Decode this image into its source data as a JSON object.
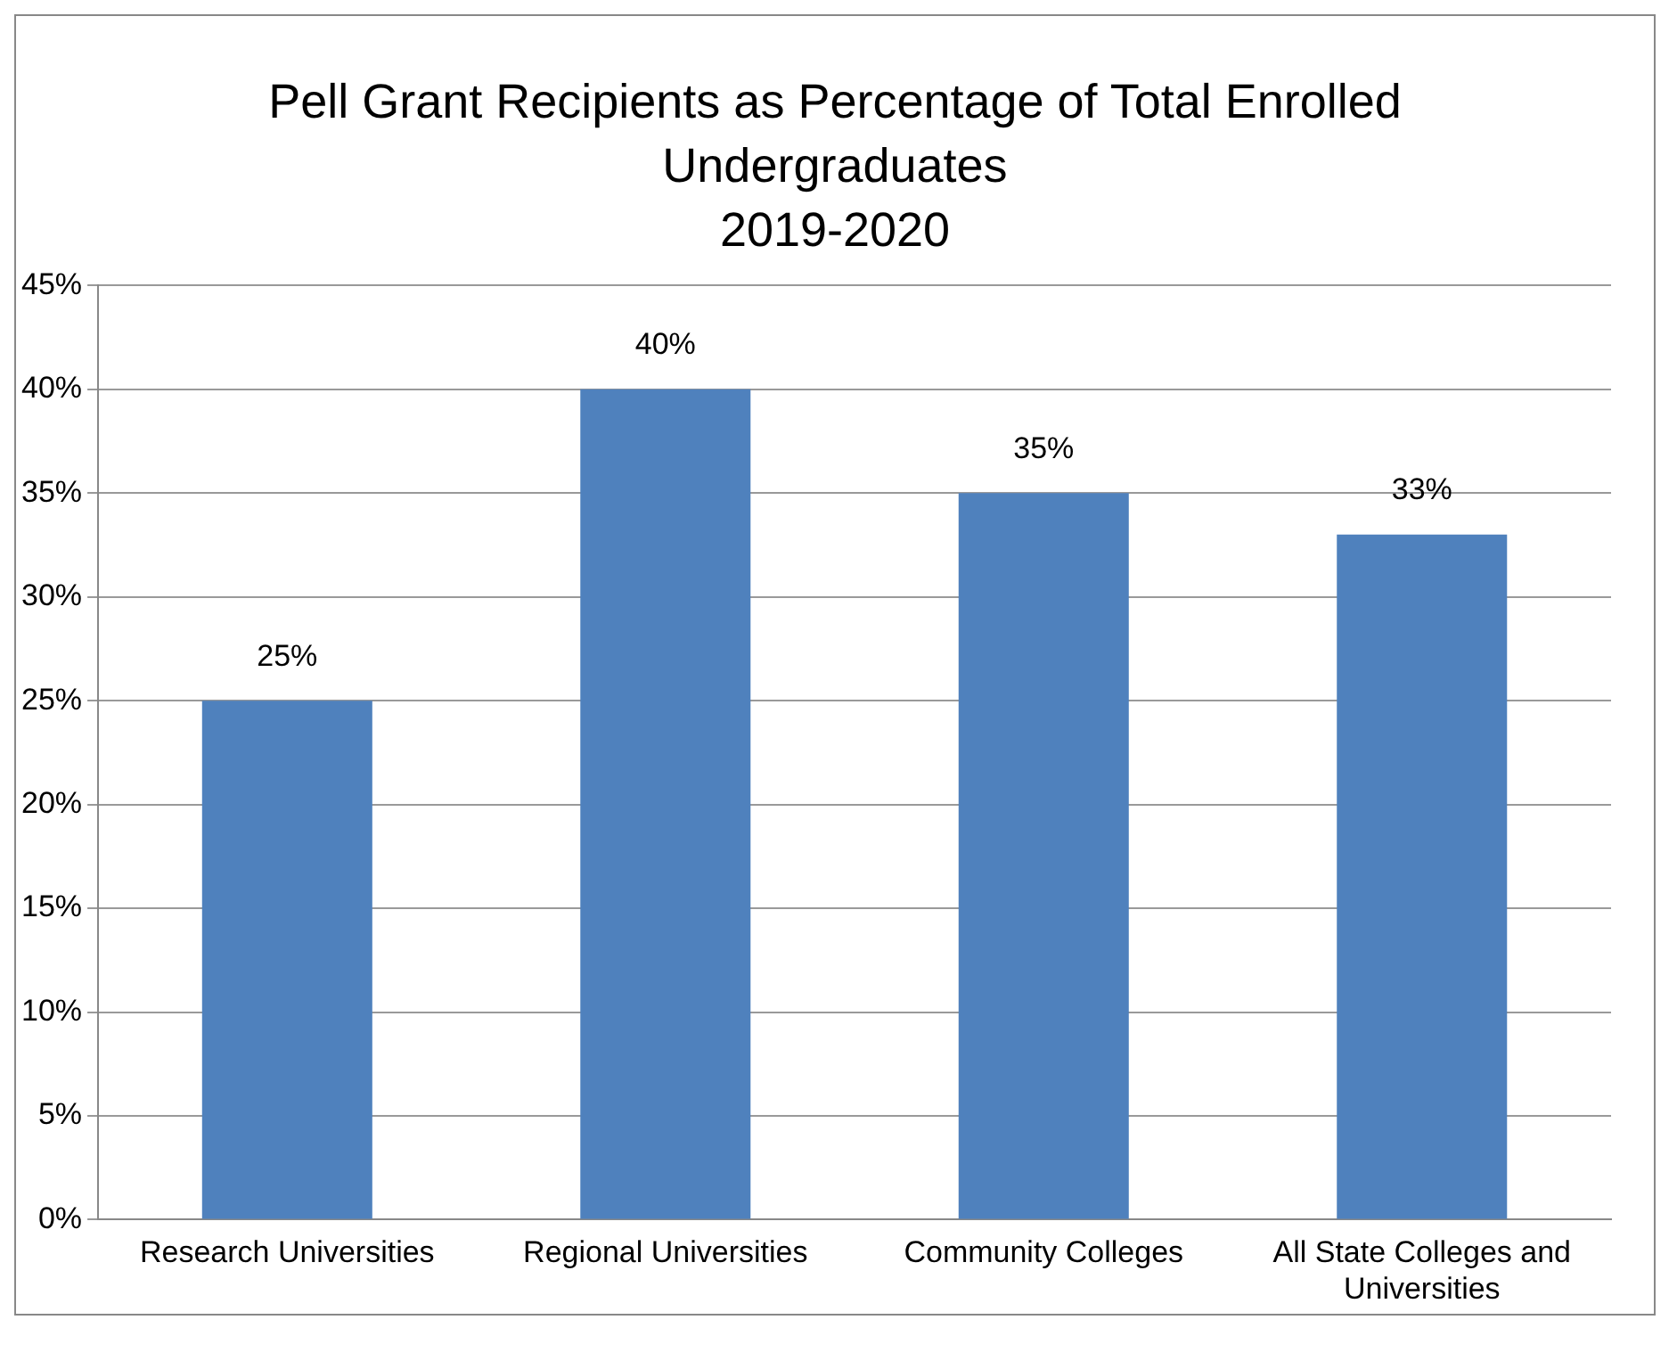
{
  "chart_data": {
    "type": "bar",
    "title": "Pell Grant Recipients as Percentage of Total Enrolled Undergraduates",
    "subtitle": "2019-2020",
    "categories": [
      "Research Universities",
      "Regional Universities",
      "Community Colleges",
      "All State Colleges and Universities"
    ],
    "values": [
      25,
      40,
      35,
      33
    ],
    "color": "#4f81bd",
    "ylim": [
      0,
      45
    ],
    "yticks": [
      {
        "value": 0,
        "label": "0%"
      },
      {
        "value": 5,
        "label": "5%"
      },
      {
        "value": 10,
        "label": "10%"
      },
      {
        "value": 15,
        "label": "15%"
      },
      {
        "value": 20,
        "label": "20%"
      },
      {
        "value": 25,
        "label": "25%"
      },
      {
        "value": 30,
        "label": "30%"
      },
      {
        "value": 35,
        "label": "35%"
      },
      {
        "value": 40,
        "label": "40%"
      },
      {
        "value": 45,
        "label": "45%"
      }
    ],
    "value_labels": [
      "25%",
      "40%",
      "35%",
      "33%"
    ],
    "grid": "y",
    "legend": false
  }
}
